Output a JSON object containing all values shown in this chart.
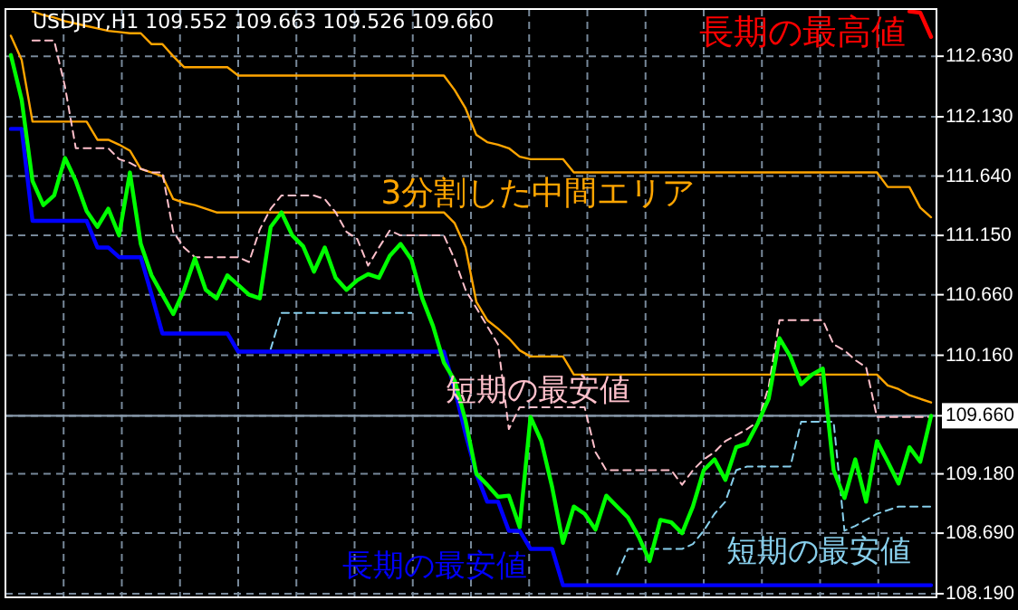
{
  "chart_data": {
    "type": "line",
    "categories": [
      null,
      null,
      null,
      null,
      null,
      null,
      null,
      null,
      null,
      null,
      null,
      null,
      null,
      null,
      null,
      null,
      null,
      null,
      null,
      null,
      null,
      null,
      null,
      null,
      null,
      null,
      null,
      null,
      null,
      null,
      null,
      null,
      null,
      null,
      null,
      null,
      null,
      null,
      null,
      null,
      null,
      null,
      null,
      null,
      null,
      null,
      null,
      null,
      null,
      null,
      null,
      null,
      null,
      null,
      null,
      null,
      null,
      null,
      null,
      null,
      null,
      null,
      null,
      null,
      null,
      null,
      null,
      null,
      null,
      null,
      null,
      null,
      null,
      null,
      null,
      null,
      null,
      null,
      null,
      null,
      null,
      null,
      null,
      null,
      null,
      null
    ],
    "series": [
      {
        "color": "#ffa500",
        "line_style": "solid",
        "values": [
          null,
          null,
          113.0,
          112.97,
          112.95,
          112.92,
          112.9,
          112.88,
          112.86,
          112.84,
          112.83,
          112.82,
          112.82,
          112.73,
          112.73,
          112.63,
          112.54,
          112.54,
          112.54,
          112.54,
          112.54,
          112.47,
          112.47,
          112.47,
          112.47,
          112.47,
          112.47,
          112.47,
          112.47,
          112.47,
          112.47,
          112.47,
          112.47,
          112.47,
          112.47,
          112.47,
          112.47,
          112.47,
          112.47,
          112.47,
          112.47,
          112.35,
          112.2,
          111.98,
          111.92,
          111.9,
          111.87,
          111.8,
          111.78,
          111.78,
          111.78,
          111.78,
          111.67,
          111.67,
          111.67,
          111.67,
          111.67,
          111.67,
          111.67,
          111.67,
          111.67,
          111.67,
          111.67,
          111.67,
          111.67,
          111.67,
          111.67,
          111.67,
          111.67,
          111.67,
          111.67,
          111.67,
          111.67,
          111.67,
          111.67,
          111.67,
          111.67,
          111.67,
          111.67,
          111.67,
          111.67,
          111.55,
          111.55,
          111.55,
          111.38,
          111.3
        ]
      },
      {
        "color": "#ffa500",
        "line_style": "solid",
        "values": [
          112.8,
          112.6,
          112.09,
          112.09,
          112.09,
          112.09,
          112.09,
          112.09,
          111.94,
          111.94,
          111.9,
          111.85,
          111.7,
          111.67,
          111.64,
          111.45,
          111.42,
          111.4,
          111.37,
          111.34,
          111.34,
          111.34,
          111.34,
          111.34,
          111.34,
          111.34,
          111.34,
          111.34,
          111.34,
          111.34,
          111.34,
          111.34,
          111.34,
          111.34,
          111.34,
          111.34,
          111.34,
          111.34,
          111.34,
          111.34,
          111.34,
          111.25,
          111.05,
          110.6,
          110.45,
          110.38,
          110.3,
          110.2,
          110.15,
          110.15,
          110.15,
          110.15,
          110.0,
          110.0,
          110.0,
          110.0,
          110.0,
          110.0,
          110.0,
          110.0,
          110.0,
          110.0,
          110.0,
          110.0,
          110.0,
          110.0,
          110.0,
          110.0,
          110.0,
          110.0,
          110.0,
          110.0,
          110.0,
          110.0,
          110.0,
          110.0,
          110.0,
          110.0,
          110.0,
          110.0,
          110.0,
          109.91,
          109.88,
          109.83,
          109.8,
          109.77
        ]
      },
      {
        "color": "#ffc0cb",
        "line_style": "dashed",
        "values": [
          null,
          null,
          112.76,
          112.76,
          112.76,
          112.38,
          111.87,
          111.87,
          111.87,
          111.87,
          111.78,
          111.75,
          111.7,
          111.67,
          111.67,
          111.18,
          111.05,
          110.97,
          110.97,
          110.97,
          110.97,
          110.97,
          110.93,
          111.2,
          111.37,
          111.48,
          111.48,
          111.48,
          111.48,
          111.45,
          111.34,
          111.18,
          111.12,
          110.9,
          111.05,
          111.19,
          111.15,
          111.15,
          111.15,
          111.15,
          111.15,
          110.95,
          110.7,
          110.55,
          110.4,
          110.25,
          109.55,
          109.73,
          109.73,
          109.73,
          109.73,
          109.73,
          109.73,
          109.73,
          109.36,
          109.21,
          109.21,
          109.21,
          109.21,
          109.21,
          109.21,
          109.21,
          109.09,
          109.21,
          109.3,
          109.36,
          109.45,
          109.5,
          109.55,
          109.61,
          109.9,
          110.45,
          110.45,
          110.45,
          110.45,
          110.45,
          110.25,
          110.2,
          110.12,
          110.06,
          109.65,
          109.65,
          109.65,
          109.65,
          109.65,
          109.65
        ]
      },
      {
        "color": "#87ceeb",
        "line_style": "dashed",
        "values": [
          null,
          null,
          null,
          null,
          null,
          null,
          null,
          null,
          null,
          null,
          null,
          null,
          null,
          null,
          null,
          null,
          null,
          null,
          null,
          null,
          null,
          null,
          null,
          null,
          110.21,
          110.51,
          110.51,
          110.51,
          110.51,
          110.51,
          110.51,
          110.51,
          110.51,
          110.51,
          110.51,
          110.51,
          110.51,
          110.51,
          null,
          null,
          null,
          null,
          null,
          null,
          null,
          null,
          null,
          null,
          null,
          null,
          null,
          null,
          null,
          null,
          null,
          null,
          108.35,
          108.56,
          108.56,
          108.56,
          108.56,
          108.56,
          108.56,
          108.6,
          108.71,
          108.85,
          108.95,
          109.21,
          109.24,
          109.24,
          109.24,
          109.24,
          109.24,
          109.61,
          109.61,
          109.61,
          109.61,
          108.71,
          108.75,
          108.8,
          108.85,
          108.88,
          108.91,
          108.91,
          108.91,
          108.91
        ]
      },
      {
        "color": "#ff0000",
        "line_style": "solid",
        "values": [
          null,
          null,
          null,
          null,
          null,
          null,
          null,
          null,
          null,
          null,
          null,
          null,
          null,
          null,
          null,
          null,
          null,
          null,
          null,
          null,
          null,
          null,
          null,
          null,
          null,
          null,
          null,
          null,
          null,
          null,
          null,
          null,
          null,
          null,
          null,
          null,
          null,
          null,
          null,
          null,
          null,
          null,
          null,
          null,
          null,
          null,
          null,
          null,
          null,
          null,
          null,
          null,
          null,
          null,
          null,
          null,
          null,
          null,
          null,
          null,
          null,
          null,
          null,
          null,
          null,
          null,
          null,
          null,
          null,
          null,
          null,
          null,
          null,
          null,
          null,
          null,
          null,
          null,
          null,
          null,
          null,
          null,
          null,
          113.0,
          112.99,
          112.79
        ]
      },
      {
        "color": "#0000ff",
        "line_style": "solid",
        "values": [
          112.03,
          112.03,
          111.27,
          111.27,
          111.27,
          111.27,
          111.27,
          111.27,
          111.05,
          111.05,
          110.97,
          110.97,
          110.97,
          110.66,
          110.34,
          110.34,
          110.34,
          110.34,
          110.34,
          110.34,
          110.34,
          110.19,
          110.19,
          110.19,
          110.19,
          110.19,
          110.19,
          110.19,
          110.19,
          110.19,
          110.19,
          110.19,
          110.19,
          110.19,
          110.19,
          110.19,
          110.19,
          110.19,
          110.19,
          110.19,
          110.19,
          109.88,
          109.51,
          109.18,
          108.95,
          108.95,
          108.71,
          108.71,
          108.56,
          108.56,
          108.56,
          108.26,
          108.26,
          108.26,
          108.26,
          108.26,
          108.26,
          108.26,
          108.26,
          108.26,
          108.26,
          108.26,
          108.26,
          108.26,
          108.26,
          108.26,
          108.26,
          108.26,
          108.26,
          108.26,
          108.26,
          108.26,
          108.26,
          108.26,
          108.26,
          108.26,
          108.26,
          108.26,
          108.26,
          108.26,
          108.26,
          108.26,
          108.26,
          108.26,
          108.26,
          108.26
        ]
      },
      {
        "color": "#00ff00",
        "line_style": "solid",
        "values": [
          112.64,
          112.27,
          111.6,
          111.4,
          111.48,
          111.79,
          111.6,
          111.35,
          111.22,
          111.37,
          111.15,
          111.67,
          111.08,
          110.82,
          110.66,
          110.5,
          110.7,
          110.96,
          110.7,
          110.63,
          110.82,
          110.74,
          110.66,
          110.63,
          111.22,
          111.34,
          111.15,
          111.06,
          110.85,
          111.05,
          110.8,
          110.7,
          110.78,
          110.83,
          110.8,
          110.98,
          111.08,
          110.95,
          110.63,
          110.4,
          110.1,
          109.95,
          109.62,
          109.18,
          109.09,
          108.99,
          109.0,
          108.74,
          109.65,
          109.45,
          109.07,
          108.61,
          108.91,
          108.85,
          108.72,
          109.0,
          108.91,
          108.82,
          108.66,
          108.46,
          108.8,
          108.78,
          108.69,
          108.91,
          109.21,
          109.3,
          109.13,
          109.4,
          109.43,
          109.6,
          109.8,
          110.3,
          110.15,
          109.92,
          110.0,
          110.05,
          109.21,
          108.98,
          109.3,
          108.95,
          109.45,
          109.28,
          109.1,
          109.4,
          109.28,
          109.66
        ]
      }
    ],
    "ylim": [
      108.16,
      113.02
    ],
    "yticks": [
      {
        "value": 112.63,
        "label": "112.630"
      },
      {
        "value": 112.13,
        "label": "112.130"
      },
      {
        "value": 111.64,
        "label": "111.640"
      },
      {
        "value": 111.15,
        "label": "111.150"
      },
      {
        "value": 110.66,
        "label": "110.660"
      },
      {
        "value": 110.16,
        "label": "110.160"
      },
      {
        "value": 109.66,
        "label": "109.660"
      },
      {
        "value": 109.18,
        "label": "109.180"
      },
      {
        "value": 108.69,
        "label": "108.690"
      },
      {
        "value": 108.19,
        "label": "108.190"
      }
    ],
    "ref_lines": [
      {
        "axis": "y",
        "value": 109.66,
        "color": "#8899aa",
        "line_style": "solid"
      }
    ],
    "grid": true,
    "annotations": [
      "USDJPY,H1 109.552 109.663 109.526 109.660",
      "長期の最高値",
      "3分割した中間エリア",
      "短期の最安値",
      "長期の最安値",
      "短期の最安値"
    ]
  }
}
